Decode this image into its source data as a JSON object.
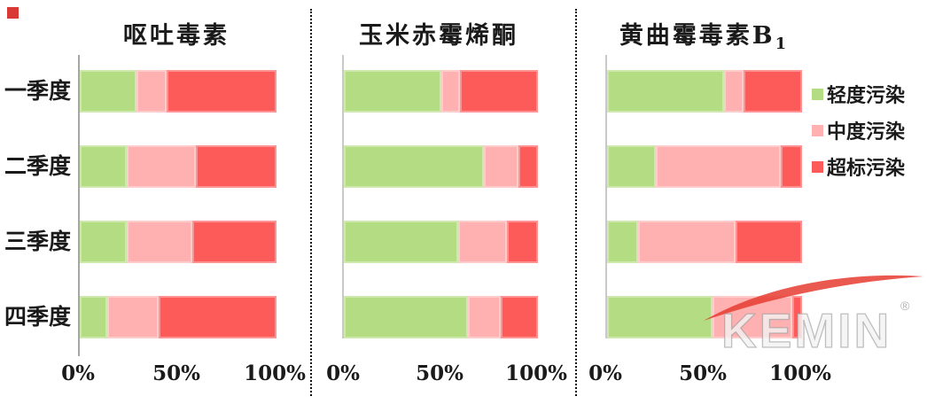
{
  "page": {
    "background": "#ffffff"
  },
  "corner_marker": {
    "color": "#d93a35"
  },
  "legend": {
    "items": [
      {
        "label": "轻度污染",
        "color": "#b4dc82"
      },
      {
        "label": "中度污染",
        "color": "#ffb1b1"
      },
      {
        "label": "超标污染",
        "color": "#fd5a5a"
      }
    ]
  },
  "watermark": {
    "text": "KEMIN",
    "reg": "®",
    "swoosh_color": "#e63c30"
  },
  "chart_data": {
    "type": "bar",
    "orientation": "horizontal",
    "stacked": true,
    "grid": false,
    "legend_position": "right",
    "xlim": [
      0,
      100
    ],
    "x_ticks": [
      "0%",
      "50%",
      "100%"
    ],
    "categories": [
      "一季度",
      "二季度",
      "三季度",
      "四季度"
    ],
    "panels": [
      {
        "title": "呕吐毒素",
        "title_main": "呕吐毒素",
        "title_sub": "",
        "series": [
          {
            "name": "轻度污染",
            "values": [
              29,
              24,
              24,
              14
            ]
          },
          {
            "name": "中度污染",
            "values": [
              15,
              35,
              33,
              26
            ]
          },
          {
            "name": "超标污染",
            "values": [
              56,
              41,
              43,
              60
            ]
          }
        ]
      },
      {
        "title": "玉米赤霉烯酮",
        "title_main": "玉米赤霉烯酮",
        "title_sub": "",
        "series": [
          {
            "name": "轻度污染",
            "values": [
              50,
              72,
              59,
              64
            ]
          },
          {
            "name": "中度污染",
            "values": [
              10,
              18,
              25,
              17
            ]
          },
          {
            "name": "超标污染",
            "values": [
              40,
              10,
              16,
              19
            ]
          }
        ]
      },
      {
        "title": "黄曲霉毒素B1",
        "title_main": "黄曲霉毒素B",
        "title_sub": "1",
        "series": [
          {
            "name": "轻度污染",
            "values": [
              60,
              25,
              16,
              54
            ]
          },
          {
            "name": "中度污染",
            "values": [
              10,
              64,
              50,
              41
            ]
          },
          {
            "name": "超标污染",
            "values": [
              30,
              11,
              34,
              5
            ]
          }
        ]
      }
    ]
  }
}
